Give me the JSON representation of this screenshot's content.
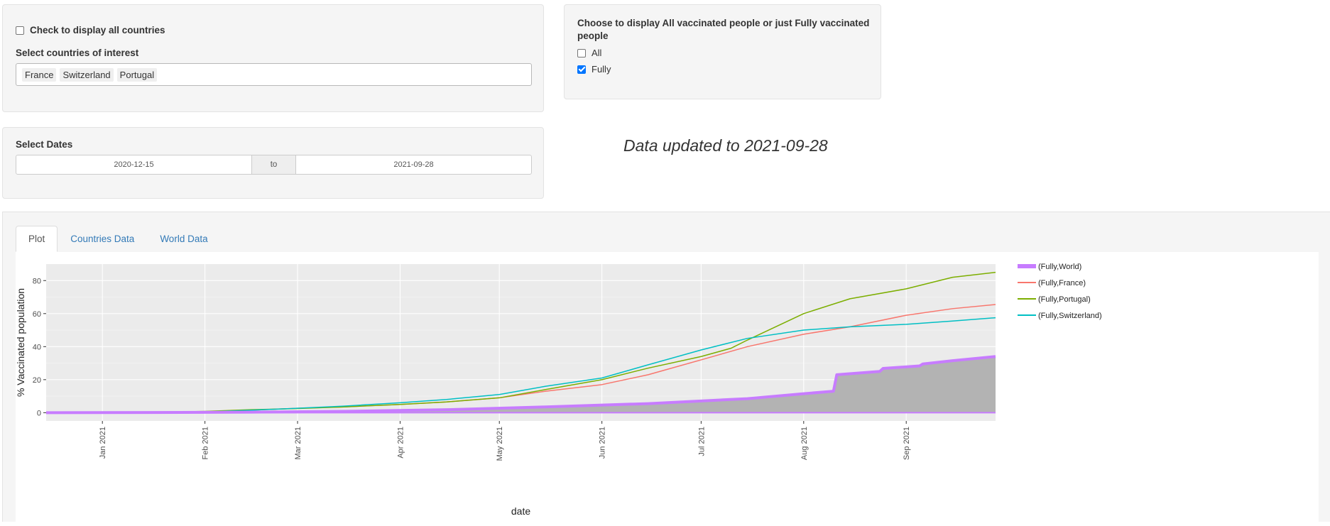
{
  "controls": {
    "all_countries_label": "Check to display all countries",
    "all_countries_checked": false,
    "countries_label": "Select countries of interest",
    "countries": [
      "France",
      "Switzerland",
      "Portugal"
    ],
    "type_label": "Choose to display All vaccinated people or just Fully vaccinated people",
    "type_options": [
      {
        "label": "All",
        "checked": false
      },
      {
        "label": "Fully",
        "checked": true
      }
    ],
    "dates_label": "Select Dates",
    "date_start": "2020-12-15",
    "date_sep": "to",
    "date_end": "2021-09-28"
  },
  "updated_text": "Data updated to 2021-09-28",
  "tabs": [
    {
      "label": "Plot",
      "active": true
    },
    {
      "label": "Countries Data",
      "active": false
    },
    {
      "label": "World Data",
      "active": false
    }
  ],
  "chart_data": {
    "type": "line",
    "xlabel": "date",
    "ylabel": "% Vaccinated population",
    "xlim": [
      "2020-12-15",
      "2021-09-28"
    ],
    "ylim": [
      -5,
      90
    ],
    "y_ticks": [
      0,
      20,
      40,
      60,
      80
    ],
    "x_ticks": [
      {
        "date": "2021-01-01",
        "label": "Jan 2021"
      },
      {
        "date": "2021-02-01",
        "label": "Feb 2021"
      },
      {
        "date": "2021-03-01",
        "label": "Mar 2021"
      },
      {
        "date": "2021-04-01",
        "label": "Apr 2021"
      },
      {
        "date": "2021-05-01",
        "label": "May 2021"
      },
      {
        "date": "2021-06-01",
        "label": "Jun 2021"
      },
      {
        "date": "2021-07-01",
        "label": "Jul 2021"
      },
      {
        "date": "2021-08-01",
        "label": "Aug 2021"
      },
      {
        "date": "2021-09-01",
        "label": "Sep 2021"
      }
    ],
    "grid": true,
    "legend_position": "right",
    "series": [
      {
        "name": "(Fully,World)",
        "color": "#c77cff",
        "width": 4,
        "area": true,
        "area_color": "#b3b3b3",
        "x": [
          "2020-12-15",
          "2021-01-15",
          "2021-02-15",
          "2021-03-15",
          "2021-04-15",
          "2021-05-15",
          "2021-06-15",
          "2021-07-15",
          "2021-08-01",
          "2021-08-10",
          "2021-08-11",
          "2021-08-24",
          "2021-08-25",
          "2021-09-05",
          "2021-09-06",
          "2021-09-15",
          "2021-09-28"
        ],
        "y": [
          0,
          0.1,
          0.3,
          0.8,
          1.8,
          3.5,
          5.5,
          8.5,
          11.5,
          13,
          23,
          25,
          26.8,
          28.3,
          29.5,
          31.5,
          34
        ]
      },
      {
        "name": "(Fully,France)",
        "color": "#f8766d",
        "width": 1.5,
        "x": [
          "2020-12-15",
          "2021-01-15",
          "2021-02-01",
          "2021-02-15",
          "2021-03-01",
          "2021-03-15",
          "2021-04-01",
          "2021-04-15",
          "2021-05-01",
          "2021-05-15",
          "2021-06-01",
          "2021-06-15",
          "2021-07-01",
          "2021-07-15",
          "2021-08-01",
          "2021-08-15",
          "2021-09-01",
          "2021-09-15",
          "2021-09-28"
        ],
        "y": [
          0,
          0.1,
          0.5,
          1.5,
          2.7,
          3.5,
          5,
          6.5,
          9,
          13,
          17,
          23,
          32,
          40,
          47.5,
          52,
          59,
          63,
          65.5
        ]
      },
      {
        "name": "(Fully,Portugal)",
        "color": "#7cae00",
        "width": 1.5,
        "x": [
          "2020-12-15",
          "2021-01-15",
          "2021-02-01",
          "2021-02-15",
          "2021-03-01",
          "2021-03-15",
          "2021-04-01",
          "2021-04-15",
          "2021-05-01",
          "2021-05-15",
          "2021-06-01",
          "2021-06-15",
          "2021-07-01",
          "2021-07-10",
          "2021-07-15",
          "2021-08-01",
          "2021-08-15",
          "2021-09-01",
          "2021-09-15",
          "2021-09-28"
        ],
        "y": [
          0,
          0.2,
          0.8,
          1.8,
          2.5,
          3.5,
          5,
          6.5,
          9,
          14,
          20,
          27,
          34,
          39,
          44,
          60,
          69,
          75,
          82,
          85
        ]
      },
      {
        "name": "(Fully,Switzerland)",
        "color": "#00bfc4",
        "width": 1.5,
        "x": [
          "2020-12-15",
          "2021-01-15",
          "2021-02-01",
          "2021-02-15",
          "2021-03-01",
          "2021-03-15",
          "2021-04-01",
          "2021-04-15",
          "2021-05-01",
          "2021-05-15",
          "2021-06-01",
          "2021-06-15",
          "2021-07-01",
          "2021-07-15",
          "2021-08-01",
          "2021-08-15",
          "2021-09-01",
          "2021-09-15",
          "2021-09-28"
        ],
        "y": [
          0,
          0.2,
          0.5,
          1.5,
          2.7,
          4,
          6,
          8,
          11,
          16,
          21,
          29,
          38,
          45,
          50,
          52,
          53.5,
          55.5,
          57.5
        ]
      }
    ]
  }
}
